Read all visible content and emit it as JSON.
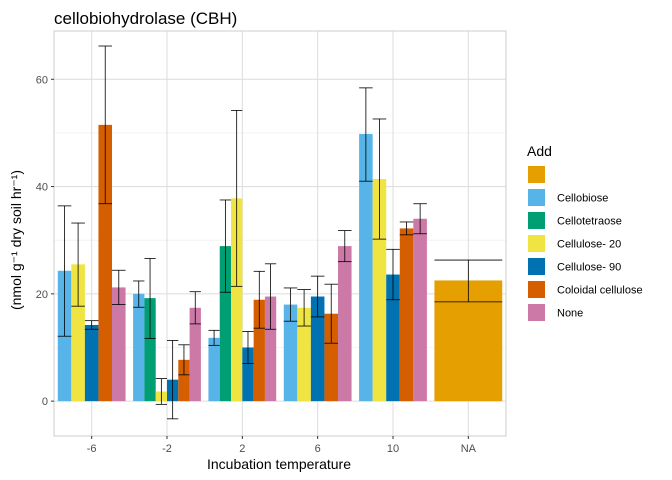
{
  "chart_data": {
    "type": "bar",
    "title": "cellobiohydrolase (CBH)",
    "xlabel": "Incubation temperature",
    "ylabel": "(nmol g⁻¹ dry soil hr⁻¹)",
    "ylim": [
      -6.5,
      69
    ],
    "yticks": [
      0,
      20,
      40,
      60
    ],
    "grid": true,
    "legend": {
      "title": "Add",
      "placement": "right"
    },
    "categories": [
      "-6",
      "-2",
      "2",
      "6",
      "10",
      "NA"
    ],
    "series": [
      {
        "name": "",
        "color": "#E69F00",
        "values": [
          null,
          null,
          null,
          null,
          null,
          22.5
        ],
        "err_low": [
          null,
          null,
          null,
          null,
          null,
          18.5
        ],
        "err_high": [
          null,
          null,
          null,
          null,
          null,
          26.3
        ]
      },
      {
        "name": "Cellobiose",
        "color": "#56B4E9",
        "values": [
          24.3,
          20.0,
          11.8,
          18.0,
          49.8,
          null
        ],
        "err_low": [
          12.1,
          17.5,
          10.4,
          14.9,
          41.0,
          null
        ],
        "err_high": [
          36.4,
          22.4,
          13.2,
          21.1,
          58.4,
          null
        ]
      },
      {
        "name": "Cellotetraose",
        "color": "#009E73",
        "values": [
          null,
          19.2,
          28.9,
          null,
          null,
          null
        ],
        "err_low": [
          null,
          11.7,
          20.3,
          null,
          null,
          null
        ],
        "err_high": [
          null,
          26.6,
          37.5,
          null,
          null,
          null
        ]
      },
      {
        "name": "Cellulose- 20",
        "color": "#F0E442",
        "values": [
          25.5,
          1.8,
          37.8,
          17.4,
          41.4,
          null
        ],
        "err_low": [
          17.7,
          -0.6,
          21.4,
          14.0,
          30.2,
          null
        ],
        "err_high": [
          33.2,
          4.2,
          54.2,
          20.8,
          52.6,
          null
        ]
      },
      {
        "name": "Cellulose- 90",
        "color": "#0072B2",
        "values": [
          14.2,
          4.0,
          10.0,
          19.5,
          23.6,
          null
        ],
        "err_low": [
          13.4,
          -3.3,
          7.0,
          15.7,
          18.9,
          null
        ],
        "err_high": [
          15.0,
          11.3,
          13.0,
          23.3,
          28.3,
          null
        ]
      },
      {
        "name": "Coloidal cellulose",
        "color": "#D55E00",
        "values": [
          51.5,
          7.7,
          18.9,
          16.3,
          32.2,
          null
        ],
        "err_low": [
          36.8,
          4.9,
          13.6,
          10.8,
          31.0,
          null
        ],
        "err_high": [
          66.2,
          10.5,
          24.2,
          21.8,
          33.4,
          null
        ]
      },
      {
        "name": "None",
        "color": "#CC79A7",
        "values": [
          21.2,
          17.4,
          19.5,
          28.9,
          34.0,
          null
        ],
        "err_low": [
          18.0,
          14.4,
          13.4,
          26.0,
          31.2,
          null
        ],
        "err_high": [
          24.4,
          20.4,
          25.6,
          31.8,
          36.8,
          null
        ]
      }
    ]
  }
}
